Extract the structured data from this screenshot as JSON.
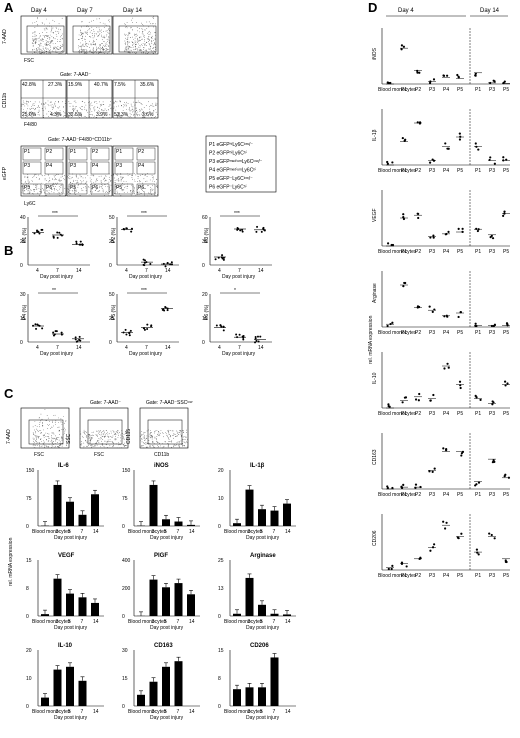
{
  "panels": {
    "A": {
      "label": "A",
      "days": [
        "Day 4",
        "Day 7",
        "Day 14"
      ],
      "row1": {
        "ylabel": "7-AAD",
        "xlabel": "FSC"
      },
      "row2": {
        "gate": "Gate: 7-AAD⁻",
        "ylabel": "CD11b",
        "xlabel": "F4/80",
        "quadrants": [
          [
            "42.8%",
            "27.3%",
            "25.0%",
            "4.3%"
          ],
          [
            "15.9%",
            "40.7%",
            "32.5%",
            "3.9%"
          ],
          [
            "7.5%",
            "35.6%",
            "53.3%",
            "3.6%"
          ]
        ]
      },
      "row3": {
        "gate": "Gate: 7-AAD⁻F4/80⁺CD11b⁺",
        "ylabel": "eGFP",
        "xlabel": "Ly6C",
        "gates": [
          "P1",
          "P2",
          "P3",
          "P4",
          "P5",
          "P6"
        ]
      },
      "legend": [
        "P1  eGFPʰⁱLy6Cˡᵒʷ/⁻",
        "P2  eGFPʰⁱLy6Cʰⁱ",
        "P3  eGFPᵐᵉᵈⁱᵘᵐLy6Cˡᵒʷ/⁻",
        "P4  eGFPᵐᵉᵈⁱᵘᵐLy6Cʰⁱ",
        "P5  eGFP⁻Ly6Cˡᵒʷ/⁻",
        "P6  eGFP⁻Ly6Cʰⁱ"
      ]
    },
    "B": {
      "label": "B",
      "xlabel": "Day post injury",
      "xticks": [
        "4",
        "7",
        "14"
      ],
      "sig": [
        "***",
        "***",
        "***",
        "**",
        "***",
        "*"
      ]
    },
    "C": {
      "label": "C",
      "gate1": "Gate: 7-AAD⁻",
      "gate2": "Gate: 7-AAD⁻SSCˡᵒʷ",
      "flow_labels": [
        "7-AAD",
        "FSC",
        "SSC",
        "FSC",
        "CD115",
        "CD11b"
      ],
      "ylabel": "rel. mRNA expression",
      "xlabel": "Day post injury",
      "blood": "Blood monocytes"
    },
    "D": {
      "label": "D",
      "group_day4": "Day 4",
      "group_day14": "Day 14",
      "ylabel": "rel. mRNA expression",
      "blood": "Blood monocytes"
    }
  },
  "chart_data": [
    {
      "type": "scatter",
      "panel": "B",
      "categories": [
        "4",
        "7",
        "14"
      ],
      "xlabel": "Day post injury",
      "series": [
        {
          "name": "P1 (%)",
          "ylim": [
            0,
            40
          ],
          "values": [
            27,
            25,
            17
          ]
        },
        {
          "name": "P2 (%)",
          "ylim": [
            0,
            50
          ],
          "values": [
            37,
            3,
            1
          ]
        },
        {
          "name": "P3 (%)",
          "ylim": [
            0,
            60
          ],
          "values": [
            10,
            45,
            44
          ]
        },
        {
          "name": "P4 (%)",
          "ylim": [
            0,
            30
          ],
          "values": [
            10,
            5,
            2
          ]
        },
        {
          "name": "P5 (%)",
          "ylim": [
            0,
            50
          ],
          "values": [
            10,
            15,
            35
          ]
        },
        {
          "name": "P6 (%)",
          "ylim": [
            0,
            20
          ],
          "values": [
            6,
            2,
            1
          ]
        }
      ]
    },
    {
      "type": "bar",
      "panel": "C",
      "categories": [
        "Blood monocytes",
        "3",
        "5",
        "7",
        "14"
      ],
      "ylabel": "rel. mRNA expression",
      "series": [
        {
          "name": "IL-6",
          "ylim": [
            0,
            150
          ],
          "values": [
            1,
            110,
            65,
            30,
            85
          ]
        },
        {
          "name": "iNOS",
          "ylim": [
            0,
            150
          ],
          "values": [
            1,
            110,
            18,
            12,
            3
          ]
        },
        {
          "name": "IL-1β",
          "ylim": [
            0,
            20
          ],
          "values": [
            1,
            13,
            6,
            5.5,
            8
          ]
        },
        {
          "name": "VEGF",
          "ylim": [
            0,
            15
          ],
          "values": [
            0.5,
            10,
            6,
            5,
            3.5
          ]
        },
        {
          "name": "PlGF",
          "ylim": [
            0,
            400
          ],
          "values": [
            1,
            260,
            205,
            235,
            155
          ]
        },
        {
          "name": "Arginase",
          "ylim": [
            0,
            25
          ],
          "values": [
            1,
            17,
            5,
            1,
            0.7
          ]
        },
        {
          "name": "IL-10",
          "ylim": [
            0,
            20
          ],
          "values": [
            3,
            13,
            14,
            9,
            0
          ]
        },
        {
          "name": "CD163",
          "ylim": [
            0,
            30
          ],
          "values": [
            6,
            13,
            21,
            24,
            0
          ]
        },
        {
          "name": "CD206",
          "ylim": [
            0,
            15
          ],
          "values": [
            4.5,
            5,
            5,
            13,
            0
          ]
        }
      ]
    },
    {
      "type": "scatter",
      "panel": "D",
      "categories": [
        "Blood monocytes",
        "P1",
        "P2",
        "P3",
        "P4",
        "P5",
        "P1",
        "P3",
        "P5"
      ],
      "series": [
        {
          "name": "iNOS",
          "ylim": [
            0,
            250
          ],
          "values": [
            0,
            160,
            60,
            10,
            30,
            25,
            50,
            5,
            3
          ]
        },
        {
          "name": "IL-1β",
          "ylim": [
            0,
            60
          ],
          "values": [
            0,
            25,
            45,
            5,
            20,
            30,
            20,
            5,
            5
          ]
        },
        {
          "name": "VEGF",
          "ylim": [
            0,
            6
          ],
          "values": [
            0,
            3,
            3.3,
            1,
            1.3,
            1.5,
            1.8,
            1.2,
            3.5
          ]
        },
        {
          "name": "Arginase",
          "ylim": [
            0,
            20
          ],
          "values": [
            1,
            15,
            7,
            6,
            4,
            5,
            0.5,
            0.5,
            0.5
          ]
        },
        {
          "name": "IL-10",
          "ylim": [
            0,
            60
          ],
          "values": [
            0,
            8,
            12,
            10,
            45,
            25,
            10,
            5,
            25
          ]
        },
        {
          "name": "CD163",
          "ylim": [
            0,
            15
          ],
          "values": [
            0,
            0.5,
            0.5,
            5,
            10,
            10,
            2,
            8,
            3
          ]
        },
        {
          "name": "CD206",
          "ylim": [
            0,
            25
          ],
          "values": [
            1,
            3,
            5,
            10,
            20,
            15,
            8,
            15,
            5
          ]
        }
      ]
    }
  ]
}
